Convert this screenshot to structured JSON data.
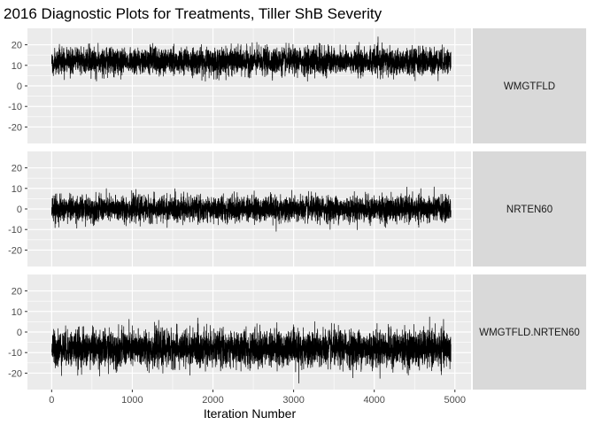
{
  "chart_data": {
    "type": "line",
    "title": "2016 Diagnostic Plots for Treatments, Tiller ShB Severity",
    "xlabel": "Iteration Number",
    "ylabel": "",
    "xlim": [
      -300,
      5200
    ],
    "ylim": [
      -28,
      28
    ],
    "x_ticks": [
      0,
      1000,
      2000,
      3000,
      4000,
      5000
    ],
    "y_ticks": [
      20,
      10,
      0,
      -10,
      -20
    ],
    "x_tick_labels": [
      "0",
      "1000",
      "2000",
      "3000",
      "4000",
      "5000"
    ],
    "y_tick_labels": [
      "20",
      "10",
      "0",
      "-10",
      "-20"
    ],
    "iterations": 4950,
    "grid": true,
    "colors": {
      "panel_bg": "#ebebeb",
      "strip_bg": "#d9d9d9",
      "grid": "#ffffff",
      "line": "#000000"
    },
    "series": [
      {
        "name": "WMGTFLD",
        "mean": 12,
        "sd": 3.1,
        "min": 2,
        "max": 24
      },
      {
        "name": "NRTEN60",
        "mean": 0,
        "sd": 3.0,
        "min": -12,
        "max": 11
      },
      {
        "name": "WMGTFLD.NRTEN60",
        "mean": -8,
        "sd": 4.3,
        "min": -26,
        "max": 8
      }
    ]
  }
}
